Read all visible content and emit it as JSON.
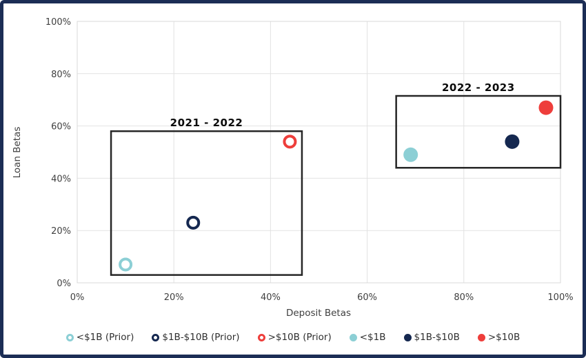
{
  "frame": {
    "border_color": "#1B2D55",
    "background": "#FFFFFF",
    "plot_border_color": "#D9D9D9",
    "gridline_color": "#E2E2E2",
    "annotation_box_color": "#262626",
    "text_color": "#3F3F3F"
  },
  "chart_data": {
    "type": "scatter",
    "title": "",
    "xlabel": "Deposit Betas",
    "ylabel": "Loan Betas",
    "xlim": [
      0,
      100
    ],
    "ylim": [
      0,
      100
    ],
    "tick_values": [
      0,
      20,
      40,
      60,
      80,
      100
    ],
    "x_tick_labels": [
      "0%",
      "20%",
      "40%",
      "60%",
      "80%",
      "100%"
    ],
    "y_tick_labels": [
      "0%",
      "20%",
      "40%",
      "60%",
      "80%",
      "100%"
    ],
    "grid": true,
    "legend_position": "bottom",
    "series": [
      {
        "name": "<$1B (Prior)",
        "marker": "ring",
        "color": "#8CCFD5",
        "points": [
          {
            "x": 10,
            "y": 7
          }
        ]
      },
      {
        "name": "$1B-$10B (Prior)",
        "marker": "ring",
        "color": "#152850",
        "points": [
          {
            "x": 24,
            "y": 23
          }
        ]
      },
      {
        "name": ">$10B (Prior)",
        "marker": "ring",
        "color": "#EE3E3B",
        "points": [
          {
            "x": 44,
            "y": 54
          }
        ]
      },
      {
        "name": "<$1B",
        "marker": "dot",
        "color": "#8CCFD5",
        "points": [
          {
            "x": 69,
            "y": 49
          }
        ]
      },
      {
        "name": "$1B-$10B",
        "marker": "dot",
        "color": "#152850",
        "points": [
          {
            "x": 90,
            "y": 54
          }
        ]
      },
      {
        "name": ">$10B",
        "marker": "dot",
        "color": "#EE3E3B",
        "points": [
          {
            "x": 97,
            "y": 67
          }
        ]
      }
    ],
    "annotations": [
      {
        "label": "2021 - 2022",
        "x0": 7,
        "x1": 46.5,
        "y0": 3,
        "y1": 58
      },
      {
        "label": "2022 - 2023",
        "x0": 66,
        "x1": 100,
        "y0": 44,
        "y1": 71.5
      }
    ]
  }
}
